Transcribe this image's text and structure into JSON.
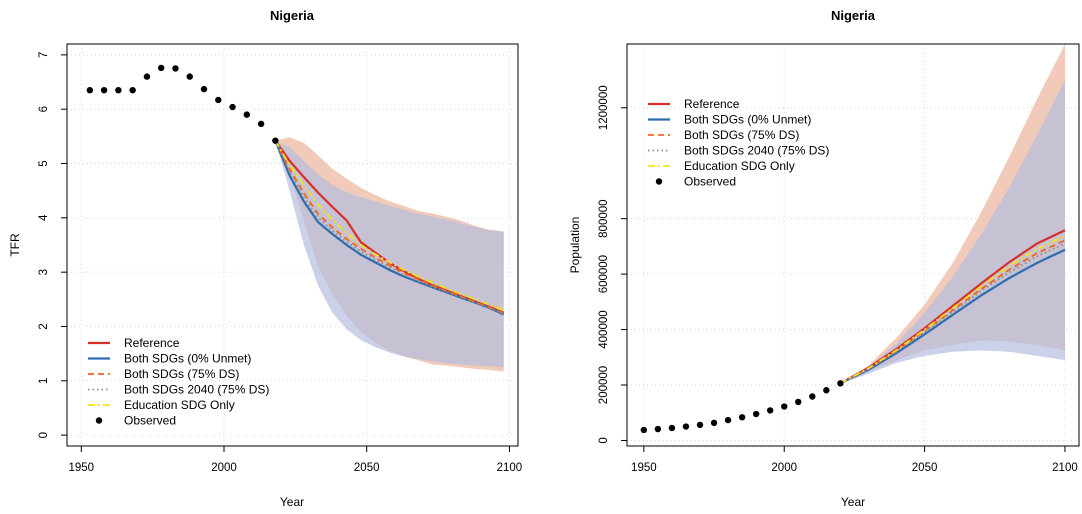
{
  "colors": {
    "reference": "#d7302a",
    "both_unmet": "#2e6db0",
    "both_75": "#f26522",
    "both_2040": "#8c8c8c",
    "education": "#f5e11a",
    "observed": "#000000",
    "band_reference": "#efc1ad",
    "band_both": "#b4bede",
    "band_overlap": "#c6aeb5",
    "grid": "#d9d9d9"
  },
  "legend_labels": [
    "Reference",
    "Both SDGs (0% Unmet)",
    "Both SDGs (75% DS)",
    "Both SDGs 2040 (75% DS)",
    "Education SDG Only",
    "Observed"
  ],
  "chart_data": [
    {
      "type": "line",
      "title": "Nigeria",
      "xlabel": "Year",
      "ylabel": "TFR",
      "xlim": [
        1945,
        2103
      ],
      "ylim": [
        -0.2,
        7.2
      ],
      "xticks": [
        "1950",
        "2000",
        "2050",
        "2100"
      ],
      "yticks": [
        "0",
        "1",
        "2",
        "3",
        "4",
        "5",
        "6",
        "7"
      ],
      "grid": true,
      "legend_position": "bottom-left",
      "observed": {
        "x": [
          1953,
          1958,
          1963,
          1968,
          1973,
          1978,
          1983,
          1988,
          1993,
          1998,
          2003,
          2008,
          2013,
          2018
        ],
        "y": [
          6.35,
          6.35,
          6.35,
          6.35,
          6.6,
          6.76,
          6.75,
          6.6,
          6.37,
          6.17,
          6.04,
          5.9,
          5.73,
          5.42
        ]
      },
      "x": [
        2018,
        2023,
        2028,
        2033,
        2038,
        2043,
        2048,
        2053,
        2058,
        2063,
        2068,
        2073,
        2078,
        2083,
        2088,
        2093,
        2098
      ],
      "series": [
        {
          "name": "Reference",
          "values": [
            5.42,
            5.05,
            4.75,
            4.46,
            4.2,
            3.95,
            3.55,
            3.36,
            3.17,
            3.02,
            2.88,
            2.76,
            2.66,
            2.56,
            2.46,
            2.36,
            2.25
          ]
        },
        {
          "name": "Both SDGs (0% Unmet)",
          "values": [
            5.42,
            4.78,
            4.3,
            3.92,
            3.7,
            3.5,
            3.32,
            3.18,
            3.04,
            2.92,
            2.82,
            2.72,
            2.63,
            2.53,
            2.44,
            2.34,
            2.22
          ]
        },
        {
          "name": "Both SDGs (75% DS)",
          "values": [
            5.42,
            4.9,
            4.45,
            4.07,
            3.82,
            3.61,
            3.43,
            3.27,
            3.12,
            2.98,
            2.87,
            2.75,
            2.65,
            2.55,
            2.45,
            2.35,
            2.24
          ]
        },
        {
          "name": "Both SDGs 2040 (75% DS)",
          "values": [
            5.42,
            4.85,
            4.38,
            4.0,
            3.76,
            3.56,
            3.38,
            3.23,
            3.08,
            2.95,
            2.84,
            2.73,
            2.64,
            2.54,
            2.44,
            2.34,
            2.23
          ]
        },
        {
          "name": "Education SDG Only",
          "values": [
            5.42,
            4.97,
            4.6,
            4.24,
            3.96,
            3.72,
            3.5,
            3.33,
            3.18,
            3.04,
            2.92,
            2.81,
            2.7,
            2.6,
            2.5,
            2.4,
            2.3
          ]
        }
      ],
      "bands": [
        {
          "series": "Reference",
          "upper": [
            5.42,
            5.48,
            5.38,
            5.15,
            4.9,
            4.72,
            4.55,
            4.42,
            4.3,
            4.22,
            4.13,
            4.08,
            4.02,
            3.95,
            3.85,
            3.78,
            3.75
          ],
          "lower": [
            5.42,
            4.8,
            3.95,
            3.1,
            2.6,
            2.2,
            1.9,
            1.7,
            1.55,
            1.45,
            1.38,
            1.3,
            1.28,
            1.25,
            1.22,
            1.2,
            1.17
          ]
        },
        {
          "series": "Both SDGs (0% Unmet)",
          "upper": [
            5.42,
            5.3,
            5.05,
            4.8,
            4.6,
            4.47,
            4.38,
            4.3,
            4.22,
            4.15,
            4.08,
            4.02,
            3.97,
            3.9,
            3.83,
            3.77,
            3.74
          ],
          "lower": [
            5.42,
            4.5,
            3.5,
            2.75,
            2.25,
            1.95,
            1.75,
            1.62,
            1.52,
            1.45,
            1.4,
            1.36,
            1.32,
            1.3,
            1.28,
            1.27,
            1.25
          ]
        }
      ]
    },
    {
      "type": "line",
      "title": "Nigeria",
      "xlabel": "Year",
      "ylabel": "Population",
      "xlim": [
        1944,
        2105
      ],
      "ylim": [
        -20000,
        1430000
      ],
      "xticks": [
        "1950",
        "2000",
        "2050",
        "2100"
      ],
      "yticks": [
        "0",
        "200000",
        "400000",
        "600000",
        "800000",
        "1200000"
      ],
      "grid": true,
      "legend_position": "top-left",
      "observed": {
        "x": [
          1950,
          1955,
          1960,
          1965,
          1970,
          1975,
          1980,
          1985,
          1990,
          1995,
          2000,
          2005,
          2010,
          2015,
          2020
        ],
        "y": [
          37800,
          41100,
          45100,
          50200,
          56100,
          63400,
          73400,
          83600,
          95300,
          108400,
          122400,
          138900,
          158500,
          181100,
          206100
        ]
      },
      "x": [
        2020,
        2030,
        2040,
        2050,
        2060,
        2070,
        2080,
        2090,
        2100
      ],
      "series": [
        {
          "name": "Reference",
          "values": [
            206100,
            262000,
            330000,
            405000,
            485000,
            565000,
            642000,
            710000,
            758000
          ]
        },
        {
          "name": "Both SDGs (0% Unmet)",
          "values": [
            206100,
            255000,
            315000,
            383000,
            453000,
            522000,
            585000,
            640000,
            688000
          ]
        },
        {
          "name": "Both SDGs (75% DS)",
          "values": [
            206100,
            259000,
            323000,
            395000,
            470000,
            545000,
            615000,
            675000,
            722000
          ]
        },
        {
          "name": "Both SDGs 2040 (75% DS)",
          "values": [
            206100,
            257000,
            320000,
            390000,
            463000,
            538000,
            605000,
            664000,
            710000
          ]
        },
        {
          "name": "Education SDG Only",
          "values": [
            206100,
            260000,
            326000,
            400000,
            477000,
            555000,
            628000,
            690000,
            738000
          ]
        }
      ],
      "bands": [
        {
          "series": "Reference",
          "upper": [
            206100,
            270000,
            370000,
            490000,
            640000,
            820000,
            1020000,
            1230000,
            1430000
          ],
          "lower": [
            206100,
            247000,
            290000,
            325000,
            345000,
            360000,
            357000,
            345000,
            325000
          ]
        },
        {
          "series": "Both SDGs (0% Unmet)",
          "upper": [
            206100,
            265000,
            350000,
            460000,
            590000,
            740000,
            910000,
            1100000,
            1300000
          ],
          "lower": [
            206100,
            240000,
            280000,
            305000,
            320000,
            325000,
            320000,
            305000,
            290000
          ]
        }
      ]
    }
  ]
}
